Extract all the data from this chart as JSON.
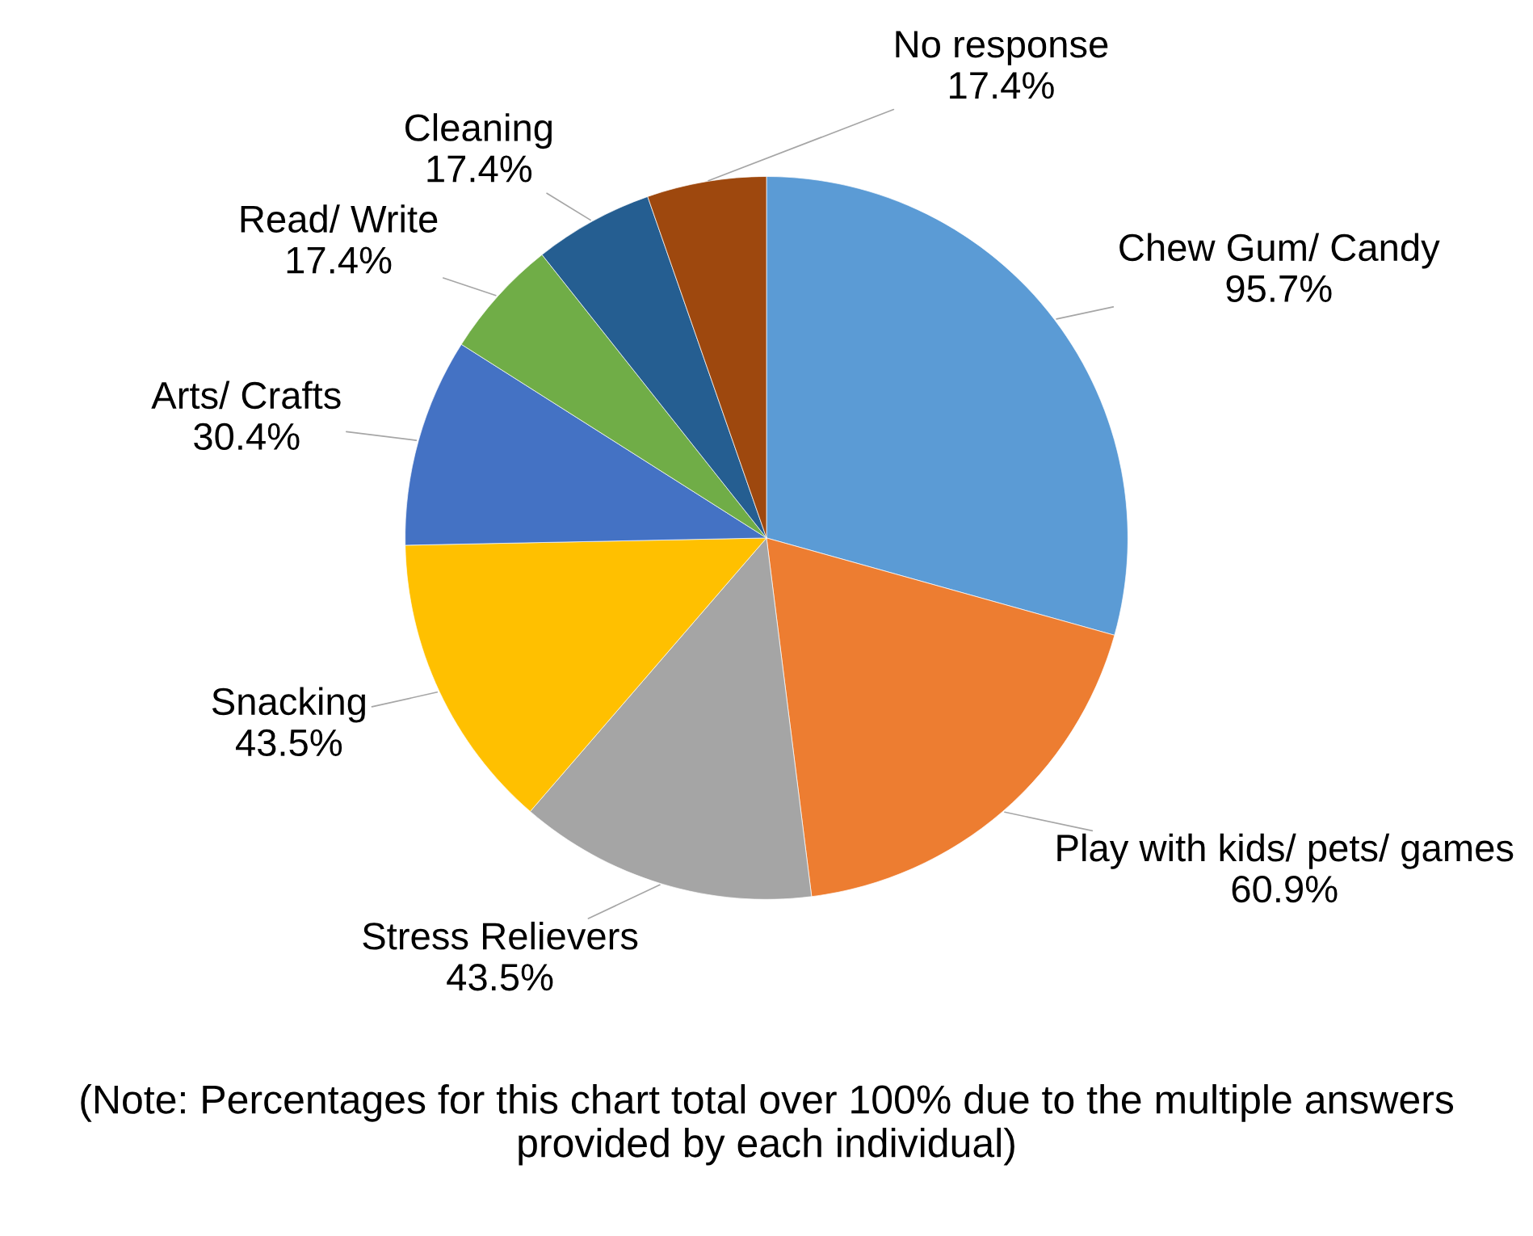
{
  "chart_data": {
    "type": "pie",
    "categories": [
      "Chew Gum/ Candy",
      "Play with kids/ pets/ games",
      "Stress Relievers",
      "Snacking",
      "Arts/ Crafts",
      "Read/ Write",
      "Cleaning",
      "No response"
    ],
    "values": [
      95.7,
      60.9,
      43.5,
      43.5,
      30.4,
      17.4,
      17.4,
      17.4
    ],
    "value_labels": [
      "95.7%",
      "60.9%",
      "43.5%",
      "43.5%",
      "30.4%",
      "17.4%",
      "17.4%",
      "17.4%"
    ],
    "colors": [
      "#5b9bd5",
      "#ed7d31",
      "#a5a5a5",
      "#ffc000",
      "#4472c4",
      "#70ad47",
      "#255e91",
      "#9e480e"
    ],
    "annotations": [
      "(Note: Percentages for this chart total over 100% due to the multiple answers provided by each individual)"
    ]
  }
}
